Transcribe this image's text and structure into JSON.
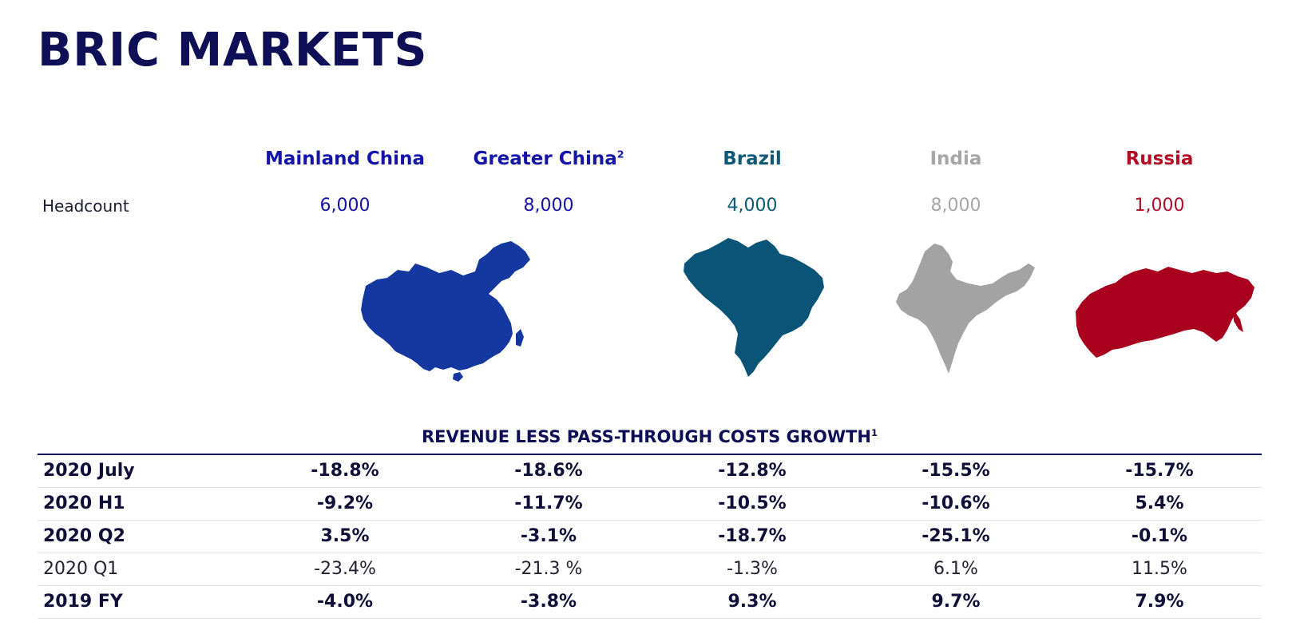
{
  "title": "BRIC MARKETS",
  "columns": [
    {
      "name": "Mainland China",
      "sup": "",
      "color": "#1414a8",
      "headcount": "6,000"
    },
    {
      "name": "Greater China",
      "sup": "2",
      "color": "#1414a8",
      "headcount": "8,000"
    },
    {
      "name": "Brazil",
      "sup": "",
      "color": "#0d5a78",
      "headcount": "4,000"
    },
    {
      "name": "India",
      "sup": "",
      "color": "#a6a6a6",
      "headcount": "8,000"
    },
    {
      "name": "Russia",
      "sup": "",
      "color": "#b30c25",
      "headcount": "1,000"
    }
  ],
  "headcount_label": "Headcount",
  "map_colors": {
    "china": "#1438a0",
    "brazil": "#0a5577",
    "india": "#a3a3a3",
    "russia": "#a8001d"
  },
  "section_title": "REVENUE LESS PASS-THROUGH COSTS GROWTH",
  "section_title_sup": "1",
  "table_rows": [
    {
      "label": "2020 July",
      "values": [
        "-18.8%",
        "-18.6%",
        "-12.8%",
        "-15.5%",
        "-15.7%"
      ],
      "bold": true
    },
    {
      "label": "2020 H1",
      "values": [
        "-9.2%",
        "-11.7%",
        "-10.5%",
        "-10.6%",
        "5.4%"
      ],
      "bold": true
    },
    {
      "label": "2020 Q2",
      "values": [
        "3.5%",
        "-3.1%",
        "-18.7%",
        "-25.1%",
        "-0.1%"
      ],
      "bold": true
    },
    {
      "label": "2020 Q1",
      "values": [
        "-23.4%",
        "-21.3 %",
        "-1.3%",
        "6.1%",
        "11.5%"
      ],
      "bold": false
    },
    {
      "label": "2019 FY",
      "values": [
        "-4.0%",
        "-3.8%",
        "9.3%",
        "9.7%",
        "7.9%"
      ],
      "bold": true
    }
  ]
}
